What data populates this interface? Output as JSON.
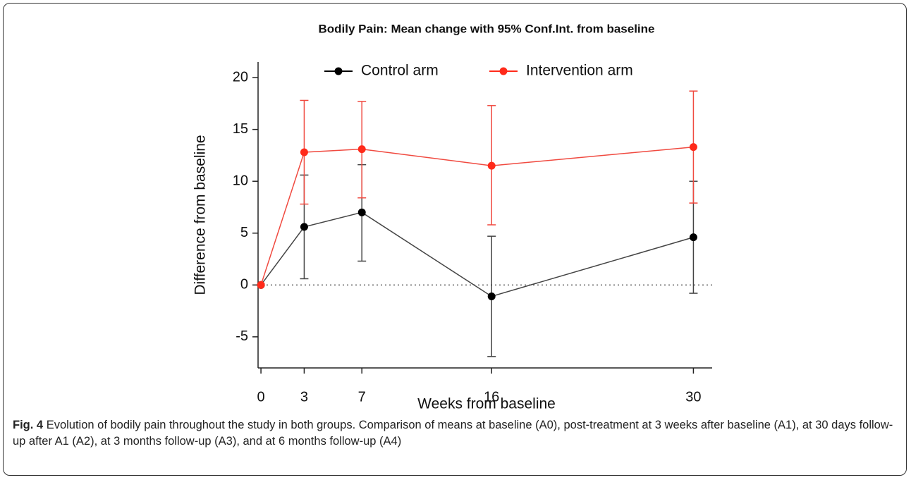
{
  "chart_data": {
    "type": "line",
    "title": "Bodily Pain: Mean change with 95% Conf.Int. from baseline",
    "xlabel": "Weeks from baseline",
    "ylabel": "Difference from baseline",
    "x": [
      0,
      3,
      7,
      16,
      30
    ],
    "series": [
      {
        "name": "Control arm",
        "color": "#000000",
        "line_color": "#444444",
        "values": [
          0,
          5.6,
          7.0,
          -1.1,
          4.6
        ],
        "lower": [
          null,
          0.6,
          2.3,
          -6.9,
          -0.8
        ],
        "upper": [
          null,
          10.6,
          11.6,
          4.7,
          10.0
        ]
      },
      {
        "name": "Intervention arm",
        "color": "#ff2a1a",
        "line_color": "#f04a40",
        "values": [
          0,
          12.8,
          13.1,
          11.5,
          13.3
        ],
        "lower": [
          null,
          7.8,
          8.4,
          5.8,
          7.9
        ],
        "upper": [
          null,
          17.8,
          17.7,
          17.3,
          18.7
        ]
      }
    ],
    "xlim": [
      -0.2,
      31.3
    ],
    "ylim": [
      -8,
      21.5
    ],
    "xticks": [
      0,
      3,
      7,
      16,
      30
    ],
    "yticks": [
      -5,
      0,
      5,
      10,
      15,
      20
    ],
    "reference_line": 0,
    "legend": "top"
  },
  "caption": {
    "label": "Fig. 4",
    "text": "Evolution of bodily pain throughout the study in both groups. Comparison of means at baseline (A0), post-treatment at 3 weeks after baseline (A1), at 30 days follow-up after A1 (A2), at 3 months follow-up (A3), and at 6 months follow-up (A4)"
  }
}
